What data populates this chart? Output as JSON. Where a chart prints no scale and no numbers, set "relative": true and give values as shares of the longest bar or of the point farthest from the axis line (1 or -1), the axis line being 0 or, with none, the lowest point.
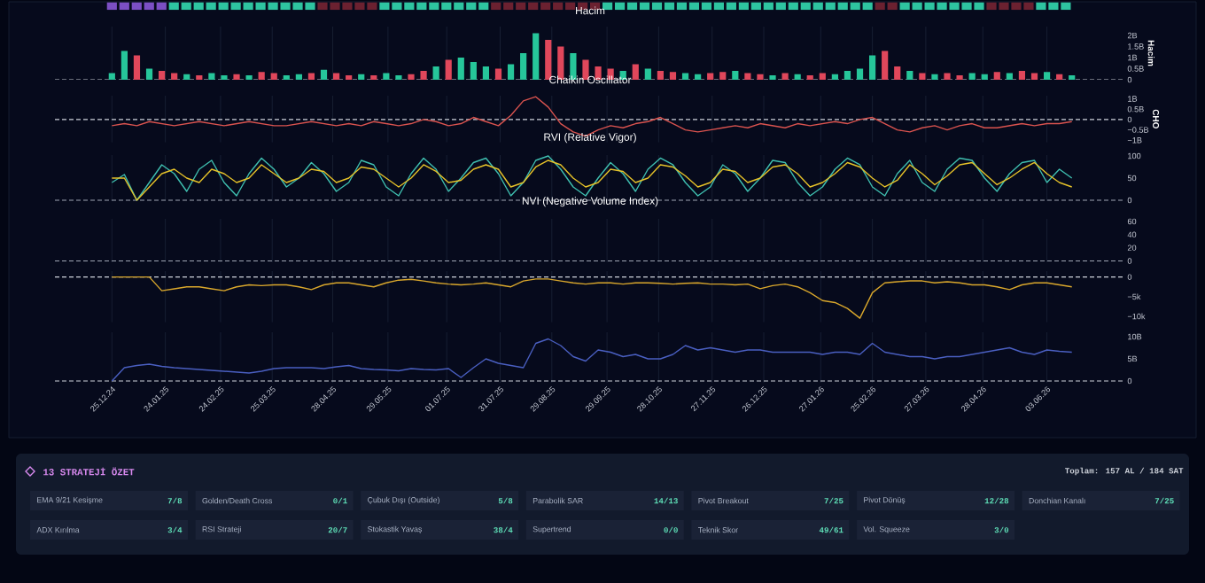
{
  "chart_data": [
    {
      "type": "bar",
      "relative": true,
      "annotations": [
        "0"
      ],
      "categories": [
        null,
        null,
        null,
        null,
        null,
        null,
        null,
        null,
        null,
        null,
        null,
        null,
        null,
        null,
        null,
        null,
        null,
        null,
        null,
        null,
        null,
        null,
        null,
        null,
        null,
        null,
        null,
        null,
        null,
        null,
        null,
        null,
        null,
        null,
        null,
        null,
        null,
        null,
        null,
        null,
        null,
        null,
        null,
        null,
        null,
        null,
        null,
        null,
        null,
        null,
        null,
        null,
        null,
        null,
        null,
        null,
        null,
        null,
        null,
        null,
        null,
        null,
        null,
        null,
        null,
        null,
        null,
        null,
        null,
        null,
        null,
        null,
        null,
        null,
        null,
        null,
        null,
        null
      ],
      "values": [
        1,
        1,
        1,
        1,
        1,
        1,
        1,
        1,
        1,
        1,
        1,
        1,
        1,
        1,
        1,
        1,
        1,
        1,
        1,
        1,
        1,
        1,
        1,
        1,
        1,
        1,
        1,
        1,
        1,
        1,
        1,
        1,
        1,
        1,
        1,
        1,
        1,
        1,
        1,
        1,
        1,
        1,
        1,
        1,
        1,
        1,
        1,
        1,
        1,
        1,
        1,
        1,
        1,
        1,
        1,
        1,
        1,
        1,
        1,
        1,
        1,
        1,
        1,
        1,
        1,
        1,
        1,
        1,
        1,
        1,
        1,
        1,
        1,
        1,
        1,
        1,
        1,
        1
      ],
      "colors": [
        "#7b4fc4",
        "#7b4fc4",
        "#7b4fc4",
        "#7b4fc4",
        "#7b4fc4",
        "#2ec4a0",
        "#2ec4a0",
        "#2ec4a0",
        "#2ec4a0",
        "#2ec4a0",
        "#2ec4a0",
        "#2ec4a0",
        "#2ec4a0",
        "#2ec4a0",
        "#2ec4a0",
        "#2ec4a0",
        "#2ec4a0",
        "#6b2130",
        "#6b2130",
        "#6b2130",
        "#6b2130",
        "#6b2130",
        "#2ec4a0",
        "#2ec4a0",
        "#2ec4a0",
        "#2ec4a0",
        "#2ec4a0",
        "#2ec4a0",
        "#2ec4a0",
        "#2ec4a0",
        "#2ec4a0",
        "#6b2130",
        "#6b2130",
        "#6b2130",
        "#6b2130",
        "#6b2130",
        "#6b2130",
        "#6b2130",
        "#6b2130",
        "#6b2130",
        "#2ec4a0",
        "#2ec4a0",
        "#2ec4a0",
        "#2ec4a0",
        "#2ec4a0",
        "#2ec4a0",
        "#2ec4a0",
        "#2ec4a0",
        "#2ec4a0",
        "#2ec4a0",
        "#2ec4a0",
        "#2ec4a0",
        "#2ec4a0",
        "#2ec4a0",
        "#2ec4a0",
        "#2ec4a0",
        "#2ec4a0",
        "#2ec4a0",
        "#2ec4a0",
        "#2ec4a0",
        "#2ec4a0",
        "#2ec4a0",
        "#6b2130",
        "#6b2130",
        "#2ec4a0",
        "#2ec4a0",
        "#2ec4a0",
        "#2ec4a0",
        "#2ec4a0",
        "#2ec4a0",
        "#2ec4a0",
        "#6b2130",
        "#6b2130",
        "#6b2130",
        "#6b2130",
        "#2ec4a0",
        "#2ec4a0",
        "#2ec4a0"
      ]
    },
    {
      "type": "bar",
      "title": "Hacim",
      "ylabel": "Hacim",
      "xlim": [
        "2024-11-23",
        "2026-07-17"
      ],
      "ylim": [
        0,
        2.4
      ],
      "tick_labels": "y",
      "grid": "x",
      "xticks": [
        "2024-12-25",
        "2025-01-24",
        "2025-02-24",
        "2025-03-25",
        "2025-04-28",
        "2025-05-29",
        "2025-07-01",
        "2025-07-31",
        "2025-08-29",
        "2025-09-29",
        "2025-10-28",
        "2025-11-27",
        "2025-12-26",
        "2026-01-27",
        "2026-02-25",
        "2026-03-27",
        "2026-04-28",
        "2026-06-03"
      ],
      "yticks": [
        0,
        {
          "value": 0.5,
          "label": "0.5B"
        },
        {
          "value": 1,
          "label": "1B"
        },
        {
          "value": 1.5,
          "label": "1.5B"
        },
        {
          "value": 2,
          "label": "2B"
        }
      ],
      "ref_lines": [
        {
          "axis": "y",
          "value": 0,
          "color": "#d0d4dc",
          "line_style": "dashed"
        }
      ],
      "x": [
        "2024-12-25",
        "2025-01-01",
        "2025-01-08",
        "2025-01-15",
        "2025-01-22",
        "2025-01-29",
        "2025-02-05",
        "2025-02-12",
        "2025-02-19",
        "2025-02-26",
        "2025-03-05",
        "2025-03-12",
        "2025-03-19",
        "2025-03-26",
        "2025-04-02",
        "2025-04-09",
        "2025-04-16",
        "2025-04-23",
        "2025-04-30",
        "2025-05-07",
        "2025-05-14",
        "2025-05-21",
        "2025-05-28",
        "2025-06-04",
        "2025-06-11",
        "2025-06-18",
        "2025-06-25",
        "2025-07-02",
        "2025-07-09",
        "2025-07-16",
        "2025-07-23",
        "2025-07-30",
        "2025-08-06",
        "2025-08-13",
        "2025-08-20",
        "2025-08-27",
        "2025-09-03",
        "2025-09-10",
        "2025-09-17",
        "2025-09-24",
        "2025-10-01",
        "2025-10-08",
        "2025-10-15",
        "2025-10-22",
        "2025-10-29",
        "2025-11-05",
        "2025-11-12",
        "2025-11-19",
        "2025-11-26",
        "2025-12-03",
        "2025-12-10",
        "2025-12-17",
        "2025-12-24",
        "2025-12-31",
        "2026-01-07",
        "2026-01-14",
        "2026-01-21",
        "2026-01-28",
        "2026-02-04",
        "2026-02-11",
        "2026-02-18",
        "2026-02-25",
        "2026-03-04",
        "2026-03-11",
        "2026-03-18",
        "2026-03-25",
        "2026-04-01",
        "2026-04-08",
        "2026-04-15",
        "2026-04-22",
        "2026-04-29",
        "2026-05-06",
        "2026-05-13",
        "2026-05-20",
        "2026-05-27",
        "2026-06-03",
        "2026-06-10",
        "2026-06-17"
      ],
      "values": [
        0.3,
        1.3,
        1.1,
        0.5,
        0.4,
        0.3,
        0.25,
        0.2,
        0.3,
        0.2,
        0.25,
        0.2,
        0.35,
        0.3,
        0.2,
        0.25,
        0.3,
        0.45,
        0.3,
        0.2,
        0.25,
        0.2,
        0.3,
        0.2,
        0.25,
        0.4,
        0.6,
        0.9,
        1.0,
        0.8,
        0.6,
        0.5,
        0.7,
        1.2,
        2.1,
        1.8,
        1.5,
        1.2,
        0.9,
        0.6,
        0.5,
        0.4,
        0.7,
        0.5,
        0.4,
        0.35,
        0.3,
        0.25,
        0.3,
        0.35,
        0.4,
        0.3,
        0.25,
        0.2,
        0.3,
        0.25,
        0.2,
        0.3,
        0.25,
        0.4,
        0.5,
        1.1,
        1.3,
        0.6,
        0.4,
        0.3,
        0.25,
        0.3,
        0.2,
        0.3,
        0.25,
        0.35,
        0.3,
        0.4,
        0.3,
        0.35,
        0.25,
        0.2
      ],
      "colors": [
        "#26c69a",
        "#26c69a",
        "#e0475b",
        "#26c69a",
        "#e0475b",
        "#e0475b",
        "#26c69a",
        "#e0475b",
        "#26c69a",
        "#26c69a",
        "#e0475b",
        "#26c69a",
        "#e0475b",
        "#e0475b",
        "#26c69a",
        "#26c69a",
        "#e0475b",
        "#26c69a",
        "#e0475b",
        "#e0475b",
        "#26c69a",
        "#e0475b",
        "#26c69a",
        "#26c69a",
        "#e0475b",
        "#e0475b",
        "#26c69a",
        "#e0475b",
        "#26c69a",
        "#26c69a",
        "#26c69a",
        "#e0475b",
        "#26c69a",
        "#26c69a",
        "#26c69a",
        "#e0475b",
        "#e0475b",
        "#26c69a",
        "#e0475b",
        "#e0475b",
        "#e0475b",
        "#26c69a",
        "#e0475b",
        "#26c69a",
        "#e0475b",
        "#e0475b",
        "#26c69a",
        "#26c69a",
        "#e0475b",
        "#e0475b",
        "#26c69a",
        "#e0475b",
        "#e0475b",
        "#26c69a",
        "#e0475b",
        "#26c69a",
        "#e0475b",
        "#e0475b",
        "#26c69a",
        "#26c69a",
        "#26c69a",
        "#26c69a",
        "#e0475b",
        "#e0475b",
        "#26c69a",
        "#e0475b",
        "#26c69a",
        "#e0475b",
        "#e0475b",
        "#26c69a",
        "#26c69a",
        "#e0475b",
        "#26c69a",
        "#e0475b",
        "#e0475b",
        "#26c69a",
        "#e0475b",
        "#26c69a"
      ]
    },
    {
      "type": "line",
      "title": "Chaikin Oscillator",
      "ylabel": "CHO",
      "xlim": [
        "2024-11-23",
        "2026-07-17"
      ],
      "ylim": [
        -1.1,
        1.15
      ],
      "tick_labels": "y",
      "grid": "x",
      "xticks": [
        "2024-12-25",
        "2025-01-24",
        "2025-02-24",
        "2025-03-25",
        "2025-04-28",
        "2025-05-29",
        "2025-07-01",
        "2025-07-31",
        "2025-08-29",
        "2025-09-29",
        "2025-10-28",
        "2025-11-27",
        "2025-12-26",
        "2026-01-27",
        "2026-02-25",
        "2026-03-27",
        "2026-04-28",
        "2026-06-03"
      ],
      "yticks": [
        {
          "value": -1,
          "label": "−1B"
        },
        {
          "value": -0.5,
          "label": "−0.5B"
        },
        0,
        {
          "value": 0.5,
          "label": "0.5B"
        },
        {
          "value": 1,
          "label": "1B"
        }
      ],
      "ref_lines": [
        {
          "axis": "y",
          "value": 0,
          "color": "#d0d4dc",
          "line_style": "dashed"
        }
      ],
      "x": [
        "2024-12-25",
        "2025-01-01",
        "2025-01-08",
        "2025-01-15",
        "2025-01-22",
        "2025-01-29",
        "2025-02-05",
        "2025-02-12",
        "2025-02-19",
        "2025-02-26",
        "2025-03-05",
        "2025-03-12",
        "2025-03-19",
        "2025-03-26",
        "2025-04-02",
        "2025-04-09",
        "2025-04-16",
        "2025-04-23",
        "2025-04-30",
        "2025-05-07",
        "2025-05-14",
        "2025-05-21",
        "2025-05-28",
        "2025-06-04",
        "2025-06-11",
        "2025-06-18",
        "2025-06-25",
        "2025-07-02",
        "2025-07-09",
        "2025-07-16",
        "2025-07-23",
        "2025-07-30",
        "2025-08-06",
        "2025-08-13",
        "2025-08-20",
        "2025-08-27",
        "2025-09-03",
        "2025-09-10",
        "2025-09-17",
        "2025-09-24",
        "2025-10-01",
        "2025-10-08",
        "2025-10-15",
        "2025-10-22",
        "2025-10-29",
        "2025-11-05",
        "2025-11-12",
        "2025-11-19",
        "2025-11-26",
        "2025-12-03",
        "2025-12-10",
        "2025-12-17",
        "2025-12-24",
        "2025-12-31",
        "2026-01-07",
        "2026-01-14",
        "2026-01-21",
        "2026-01-28",
        "2026-02-04",
        "2026-02-11",
        "2026-02-18",
        "2026-02-25",
        "2026-03-04",
        "2026-03-11",
        "2026-03-18",
        "2026-03-25",
        "2026-04-01",
        "2026-04-08",
        "2026-04-15",
        "2026-04-22",
        "2026-04-29",
        "2026-05-06",
        "2026-05-13",
        "2026-05-20",
        "2026-05-27",
        "2026-06-03",
        "2026-06-10",
        "2026-06-17"
      ],
      "series": [
        {
          "color": "#d9534f",
          "values": [
            -0.3,
            -0.2,
            -0.3,
            -0.1,
            -0.2,
            -0.3,
            -0.2,
            -0.1,
            -0.2,
            -0.3,
            -0.2,
            -0.1,
            -0.2,
            -0.3,
            -0.3,
            -0.2,
            -0.1,
            -0.2,
            -0.3,
            -0.2,
            -0.3,
            -0.1,
            -0.2,
            -0.3,
            -0.2,
            0.0,
            -0.1,
            -0.3,
            -0.2,
            0.1,
            -0.1,
            -0.3,
            0.2,
            0.9,
            1.1,
            0.6,
            -0.2,
            -0.6,
            -0.8,
            -0.5,
            -0.3,
            -0.4,
            -0.2,
            -0.1,
            0.1,
            -0.2,
            -0.5,
            -0.6,
            -0.5,
            -0.4,
            -0.3,
            -0.4,
            -0.2,
            -0.3,
            -0.4,
            -0.2,
            -0.3,
            -0.2,
            -0.1,
            -0.2,
            0.0,
            0.1,
            -0.2,
            -0.5,
            -0.6,
            -0.4,
            -0.3,
            -0.5,
            -0.3,
            -0.2,
            -0.4,
            -0.4,
            -0.3,
            -0.2,
            -0.3,
            -0.2,
            -0.2,
            -0.1
          ]
        }
      ]
    },
    {
      "type": "line",
      "title": "RVI (Relative Vigor)",
      "xlim": [
        "2024-11-23",
        "2026-07-17"
      ],
      "ylim": [
        -2,
        102
      ],
      "tick_labels": "y",
      "grid": "x",
      "xticks": [
        "2024-12-25",
        "2025-01-24",
        "2025-02-24",
        "2025-03-25",
        "2025-04-28",
        "2025-05-29",
        "2025-07-01",
        "2025-07-31",
        "2025-08-29",
        "2025-09-29",
        "2025-10-28",
        "2025-11-27",
        "2025-12-26",
        "2026-01-27",
        "2026-02-25",
        "2026-03-27",
        "2026-04-28",
        "2026-06-03"
      ],
      "yticks": [
        0,
        50,
        100
      ],
      "ref_lines": [
        {
          "axis": "y",
          "value": 0,
          "color": "#a0a6b4",
          "line_style": "dashed"
        }
      ],
      "x": [
        "2024-12-25",
        "2025-01-01",
        "2025-01-08",
        "2025-01-15",
        "2025-01-22",
        "2025-01-29",
        "2025-02-05",
        "2025-02-12",
        "2025-02-19",
        "2025-02-26",
        "2025-03-05",
        "2025-03-12",
        "2025-03-19",
        "2025-03-26",
        "2025-04-02",
        "2025-04-09",
        "2025-04-16",
        "2025-04-23",
        "2025-04-30",
        "2025-05-07",
        "2025-05-14",
        "2025-05-21",
        "2025-05-28",
        "2025-06-04",
        "2025-06-11",
        "2025-06-18",
        "2025-06-25",
        "2025-07-02",
        "2025-07-09",
        "2025-07-16",
        "2025-07-23",
        "2025-07-30",
        "2025-08-06",
        "2025-08-13",
        "2025-08-20",
        "2025-08-27",
        "2025-09-03",
        "2025-09-10",
        "2025-09-17",
        "2025-09-24",
        "2025-10-01",
        "2025-10-08",
        "2025-10-15",
        "2025-10-22",
        "2025-10-29",
        "2025-11-05",
        "2025-11-12",
        "2025-11-19",
        "2025-11-26",
        "2025-12-03",
        "2025-12-10",
        "2025-12-17",
        "2025-12-24",
        "2025-12-31",
        "2026-01-07",
        "2026-01-14",
        "2026-01-21",
        "2026-01-28",
        "2026-02-04",
        "2026-02-11",
        "2026-02-18",
        "2026-02-25",
        "2026-03-04",
        "2026-03-11",
        "2026-03-18",
        "2026-03-25",
        "2026-04-01",
        "2026-04-08",
        "2026-04-15",
        "2026-04-22",
        "2026-04-29",
        "2026-05-06",
        "2026-05-13",
        "2026-05-20",
        "2026-05-27",
        "2026-06-03",
        "2026-06-10",
        "2026-06-17"
      ],
      "series": [
        {
          "color": "#3fbfb0",
          "values": [
            40,
            58,
            0,
            40,
            80,
            60,
            20,
            70,
            90,
            40,
            10,
            60,
            95,
            70,
            30,
            50,
            85,
            60,
            20,
            40,
            90,
            80,
            30,
            10,
            60,
            95,
            70,
            20,
            50,
            85,
            95,
            60,
            10,
            40,
            90,
            100,
            70,
            30,
            10,
            50,
            85,
            60,
            20,
            70,
            95,
            80,
            40,
            10,
            30,
            80,
            60,
            20,
            50,
            90,
            85,
            40,
            10,
            30,
            70,
            95,
            80,
            30,
            10,
            60,
            90,
            40,
            20,
            70,
            95,
            90,
            50,
            20,
            60,
            85,
            90,
            40,
            70,
            50
          ]
        },
        {
          "color": "#e6c229",
          "values": [
            50,
            50,
            0,
            30,
            60,
            70,
            50,
            40,
            70,
            60,
            40,
            50,
            80,
            60,
            40,
            50,
            70,
            65,
            40,
            50,
            75,
            70,
            50,
            30,
            50,
            80,
            65,
            40,
            45,
            70,
            80,
            70,
            30,
            40,
            75,
            90,
            80,
            50,
            30,
            40,
            70,
            65,
            40,
            50,
            80,
            75,
            55,
            30,
            40,
            70,
            65,
            40,
            50,
            75,
            80,
            60,
            30,
            40,
            60,
            85,
            75,
            50,
            30,
            45,
            80,
            60,
            35,
            55,
            80,
            85,
            60,
            35,
            50,
            70,
            85,
            60,
            40,
            30
          ]
        }
      ]
    },
    {
      "type": "line",
      "title": "NVI (Negative Volume Index)",
      "xlim": [
        "2024-11-23",
        "2026-07-17"
      ],
      "ylim": [
        -2,
        64
      ],
      "tick_labels": "y",
      "grid": "x",
      "xticks": [
        "2024-12-25",
        "2025-01-24",
        "2025-02-24",
        "2025-03-25",
        "2025-04-28",
        "2025-05-29",
        "2025-07-01",
        "2025-07-31",
        "2025-08-29",
        "2025-09-29",
        "2025-10-28",
        "2025-11-27",
        "2025-12-26",
        "2026-01-27",
        "2026-02-25",
        "2026-03-27",
        "2026-04-28",
        "2026-06-03"
      ],
      "yticks": [
        0,
        20,
        40,
        60
      ],
      "ref_lines": [
        {
          "axis": "y",
          "value": 0,
          "color": "#a0a6b4",
          "line_style": "dashed"
        }
      ]
    },
    {
      "type": "line",
      "xlim": [
        "2024-11-23",
        "2026-07-17"
      ],
      "ylim": [
        -11.5,
        1.5
      ],
      "tick_labels": "y",
      "grid": "x",
      "xticks": [
        "2024-12-25",
        "2025-01-24",
        "2025-02-24",
        "2025-03-25",
        "2025-04-28",
        "2025-05-29",
        "2025-07-01",
        "2025-07-31",
        "2025-08-29",
        "2025-09-29",
        "2025-10-28",
        "2025-11-27",
        "2025-12-26",
        "2026-01-27",
        "2026-02-25",
        "2026-03-27",
        "2026-04-28",
        "2026-06-03"
      ],
      "yticks": [
        {
          "value": -10,
          "label": "−10k"
        },
        {
          "value": -5,
          "label": "−5k"
        },
        0
      ],
      "ref_lines": [
        {
          "axis": "y",
          "value": 0,
          "color": "#d0d4dc",
          "line_style": "dashed"
        }
      ],
      "x": [
        "2024-12-25",
        "2025-01-01",
        "2025-01-08",
        "2025-01-15",
        "2025-01-22",
        "2025-01-29",
        "2025-02-05",
        "2025-02-12",
        "2025-02-19",
        "2025-02-26",
        "2025-03-05",
        "2025-03-12",
        "2025-03-19",
        "2025-03-26",
        "2025-04-02",
        "2025-04-09",
        "2025-04-16",
        "2025-04-23",
        "2025-04-30",
        "2025-05-07",
        "2025-05-14",
        "2025-05-21",
        "2025-05-28",
        "2025-06-04",
        "2025-06-11",
        "2025-06-18",
        "2025-06-25",
        "2025-07-02",
        "2025-07-09",
        "2025-07-16",
        "2025-07-23",
        "2025-07-30",
        "2025-08-06",
        "2025-08-13",
        "2025-08-20",
        "2025-08-27",
        "2025-09-03",
        "2025-09-10",
        "2025-09-17",
        "2025-09-24",
        "2025-10-01",
        "2025-10-08",
        "2025-10-15",
        "2025-10-22",
        "2025-10-29",
        "2025-11-05",
        "2025-11-12",
        "2025-11-19",
        "2025-11-26",
        "2025-12-03",
        "2025-12-10",
        "2025-12-17",
        "2025-12-24",
        "2025-12-31",
        "2026-01-07",
        "2026-01-14",
        "2026-01-21",
        "2026-01-28",
        "2026-02-04",
        "2026-02-11",
        "2026-02-18",
        "2026-02-25",
        "2026-03-04",
        "2026-03-11",
        "2026-03-18",
        "2026-03-25",
        "2026-04-01",
        "2026-04-08",
        "2026-04-15",
        "2026-04-22",
        "2026-04-29",
        "2026-05-06",
        "2026-05-13",
        "2026-05-20",
        "2026-05-27",
        "2026-06-03",
        "2026-06-10",
        "2026-06-17"
      ],
      "series": [
        {
          "color": "#d9a72c",
          "values": [
            0,
            0,
            0,
            0,
            -3.5,
            -3,
            -2.5,
            -2.5,
            -3,
            -3.5,
            -2.5,
            -2,
            -2.2,
            -2,
            -2,
            -2.5,
            -3.2,
            -2,
            -1.5,
            -1.5,
            -2,
            -2.5,
            -1.5,
            -0.8,
            -0.6,
            -1,
            -1.5,
            -1.8,
            -2,
            -1.8,
            -1.5,
            -2,
            -2.5,
            -1,
            -0.5,
            -0.5,
            -1,
            -1.5,
            -1.8,
            -1.5,
            -1.5,
            -1.8,
            -1.5,
            -1.5,
            -1.6,
            -1.8,
            -1.6,
            -1.5,
            -1.8,
            -1.8,
            -2,
            -1.8,
            -3,
            -2.2,
            -1.8,
            -2.5,
            -4,
            -6,
            -6.5,
            -8,
            -10.5,
            -4,
            -1.5,
            -1.2,
            -1,
            -1,
            -1.5,
            -1.2,
            -1.5,
            -2,
            -2,
            -2.5,
            -3.2,
            -2,
            -1.5,
            -1.5,
            -2,
            -2.5
          ]
        }
      ]
    },
    {
      "type": "line",
      "xlim": [
        "2024-11-23",
        "2026-07-17"
      ],
      "ylim": [
        -0.4,
        11
      ],
      "grid": "x",
      "xticks": [
        {
          "value": "2024-12-25",
          "label": "25.12.24"
        },
        {
          "value": "2025-01-24",
          "label": "24.01.25"
        },
        {
          "value": "2025-02-24",
          "label": "24.02.25"
        },
        {
          "value": "2025-03-25",
          "label": "25.03.25"
        },
        {
          "value": "2025-04-28",
          "label": "28.04.25"
        },
        {
          "value": "2025-05-29",
          "label": "29.05.25"
        },
        {
          "value": "2025-07-01",
          "label": "01.07.25"
        },
        {
          "value": "2025-07-31",
          "label": "31.07.25"
        },
        {
          "value": "2025-08-29",
          "label": "29.08.25"
        },
        {
          "value": "2025-09-29",
          "label": "29.09.25"
        },
        {
          "value": "2025-10-28",
          "label": "28.10.25"
        },
        {
          "value": "2025-11-27",
          "label": "27.11.25"
        },
        {
          "value": "2025-12-26",
          "label": "26.12.25"
        },
        {
          "value": "2026-01-27",
          "label": "27.01.26"
        },
        {
          "value": "2026-02-25",
          "label": "25.02.26"
        },
        {
          "value": "2026-03-27",
          "label": "27.03.26"
        },
        {
          "value": "2026-04-28",
          "label": "28.04.26"
        },
        {
          "value": "2026-06-03",
          "label": "03.06.26"
        }
      ],
      "yticks": [
        0,
        {
          "value": 5,
          "label": "5B"
        },
        {
          "value": 10,
          "label": "10B"
        }
      ],
      "ref_lines": [
        {
          "axis": "y",
          "value": 0,
          "color": "#d0d4dc",
          "line_style": "dashed"
        }
      ],
      "x": [
        "2024-12-25",
        "2025-01-01",
        "2025-01-08",
        "2025-01-15",
        "2025-01-22",
        "2025-01-29",
        "2025-02-05",
        "2025-02-12",
        "2025-02-19",
        "2025-02-26",
        "2025-03-05",
        "2025-03-12",
        "2025-03-19",
        "2025-03-26",
        "2025-04-02",
        "2025-04-09",
        "2025-04-16",
        "2025-04-23",
        "2025-04-30",
        "2025-05-07",
        "2025-05-14",
        "2025-05-21",
        "2025-05-28",
        "2025-06-04",
        "2025-06-11",
        "2025-06-18",
        "2025-06-25",
        "2025-07-02",
        "2025-07-09",
        "2025-07-16",
        "2025-07-23",
        "2025-07-30",
        "2025-08-06",
        "2025-08-13",
        "2025-08-20",
        "2025-08-27",
        "2025-09-03",
        "2025-09-10",
        "2025-09-17",
        "2025-09-24",
        "2025-10-01",
        "2025-10-08",
        "2025-10-15",
        "2025-10-22",
        "2025-10-29",
        "2025-11-05",
        "2025-11-12",
        "2025-11-19",
        "2025-11-26",
        "2025-12-03",
        "2025-12-10",
        "2025-12-17",
        "2025-12-24",
        "2025-12-31",
        "2026-01-07",
        "2026-01-14",
        "2026-01-21",
        "2026-01-28",
        "2026-02-04",
        "2026-02-11",
        "2026-02-18",
        "2026-02-25",
        "2026-03-04",
        "2026-03-11",
        "2026-03-18",
        "2026-03-25",
        "2026-04-01",
        "2026-04-08",
        "2026-04-15",
        "2026-04-22",
        "2026-04-29",
        "2026-05-06",
        "2026-05-13",
        "2026-05-20",
        "2026-05-27",
        "2026-06-03",
        "2026-06-10",
        "2026-06-17"
      ],
      "series": [
        {
          "color": "#4a5fc1",
          "values": [
            0,
            3,
            3.5,
            3.8,
            3.3,
            3,
            2.8,
            2.6,
            2.4,
            2.2,
            2,
            1.8,
            2.2,
            2.8,
            3,
            3,
            3,
            2.8,
            3.2,
            3.5,
            2.8,
            2.6,
            2.5,
            2.3,
            2.8,
            2.6,
            2.5,
            2.8,
            0.8,
            3,
            5,
            4,
            3.5,
            3,
            8.5,
            9.5,
            8,
            5.5,
            4.5,
            7,
            6.5,
            5.5,
            6,
            5,
            5,
            6,
            8,
            7,
            7.5,
            7,
            6.5,
            7,
            7,
            6.5,
            6.5,
            6.5,
            6.5,
            6,
            6.5,
            6.5,
            6,
            8.5,
            6.5,
            6,
            5.5,
            5.5,
            5,
            5.5,
            5.5,
            6,
            6.5,
            7,
            7.5,
            6.5,
            6,
            7,
            6.7,
            6.5
          ]
        }
      ]
    },
    {
      "type": "other",
      "title": "13 STRATEJİ ÖZET",
      "annotations": [
        "Toplam: 157 AL / 184 SAT",
        "EMA 9/21 Kesişme",
        "7/8",
        "Golden/Death Cross",
        "0/1",
        "Çubuk Dışı (Outside)",
        "5/8",
        "Parabolik SAR",
        "14/13",
        "Pivot Breakout",
        "7/25",
        "Pivot Dönüş",
        "12/28",
        "Donchian Kanalı",
        "7/25",
        "ADX Kırılma",
        "3/4",
        "RSI Strateji",
        "20/7",
        "Stokastik Yavaş",
        "38/4",
        "Supertrend",
        "0/0",
        "Teknik Skor",
        "49/61",
        "Vol. Squeeze",
        "3/0"
      ]
    }
  ]
}
